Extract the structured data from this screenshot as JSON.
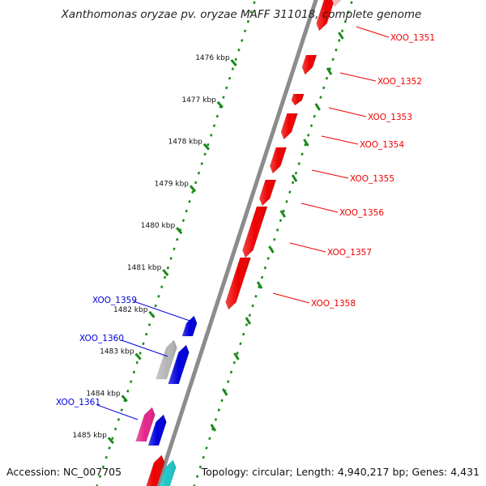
{
  "title": "Xanthomonas oryzae pv. oryzae MAFF 311018, complete genome",
  "accession": "Accession: NC_007705",
  "topology": "Topology: circular; Length: 4,940,217 bp; Genes: 4,431",
  "colors": {
    "backbone": "#8c8c8c",
    "ticks": "#1a8a1a",
    "forward": "#ee0000",
    "reverse": "#0000dd",
    "pseudo": "#b5b5b5",
    "magenta": "#e6248c",
    "cyan": "#1fc7c7"
  },
  "kbp_ticks": [
    "1476 kbp",
    "1477 kbp",
    "1478 kbp",
    "1479 kbp",
    "1480 kbp",
    "1481 kbp",
    "1482 kbp",
    "1483 kbp",
    "1484 kbp",
    "1485 kbp"
  ],
  "forward_labels": [
    "XOO_1351",
    "XOO_1352",
    "XOO_1353",
    "XOO_1354",
    "XOO_1355",
    "XOO_1356",
    "XOO_1357",
    "XOO_1358"
  ],
  "reverse_labels": [
    "XOO_1359",
    "XOO_1360",
    "XOO_1361"
  ]
}
